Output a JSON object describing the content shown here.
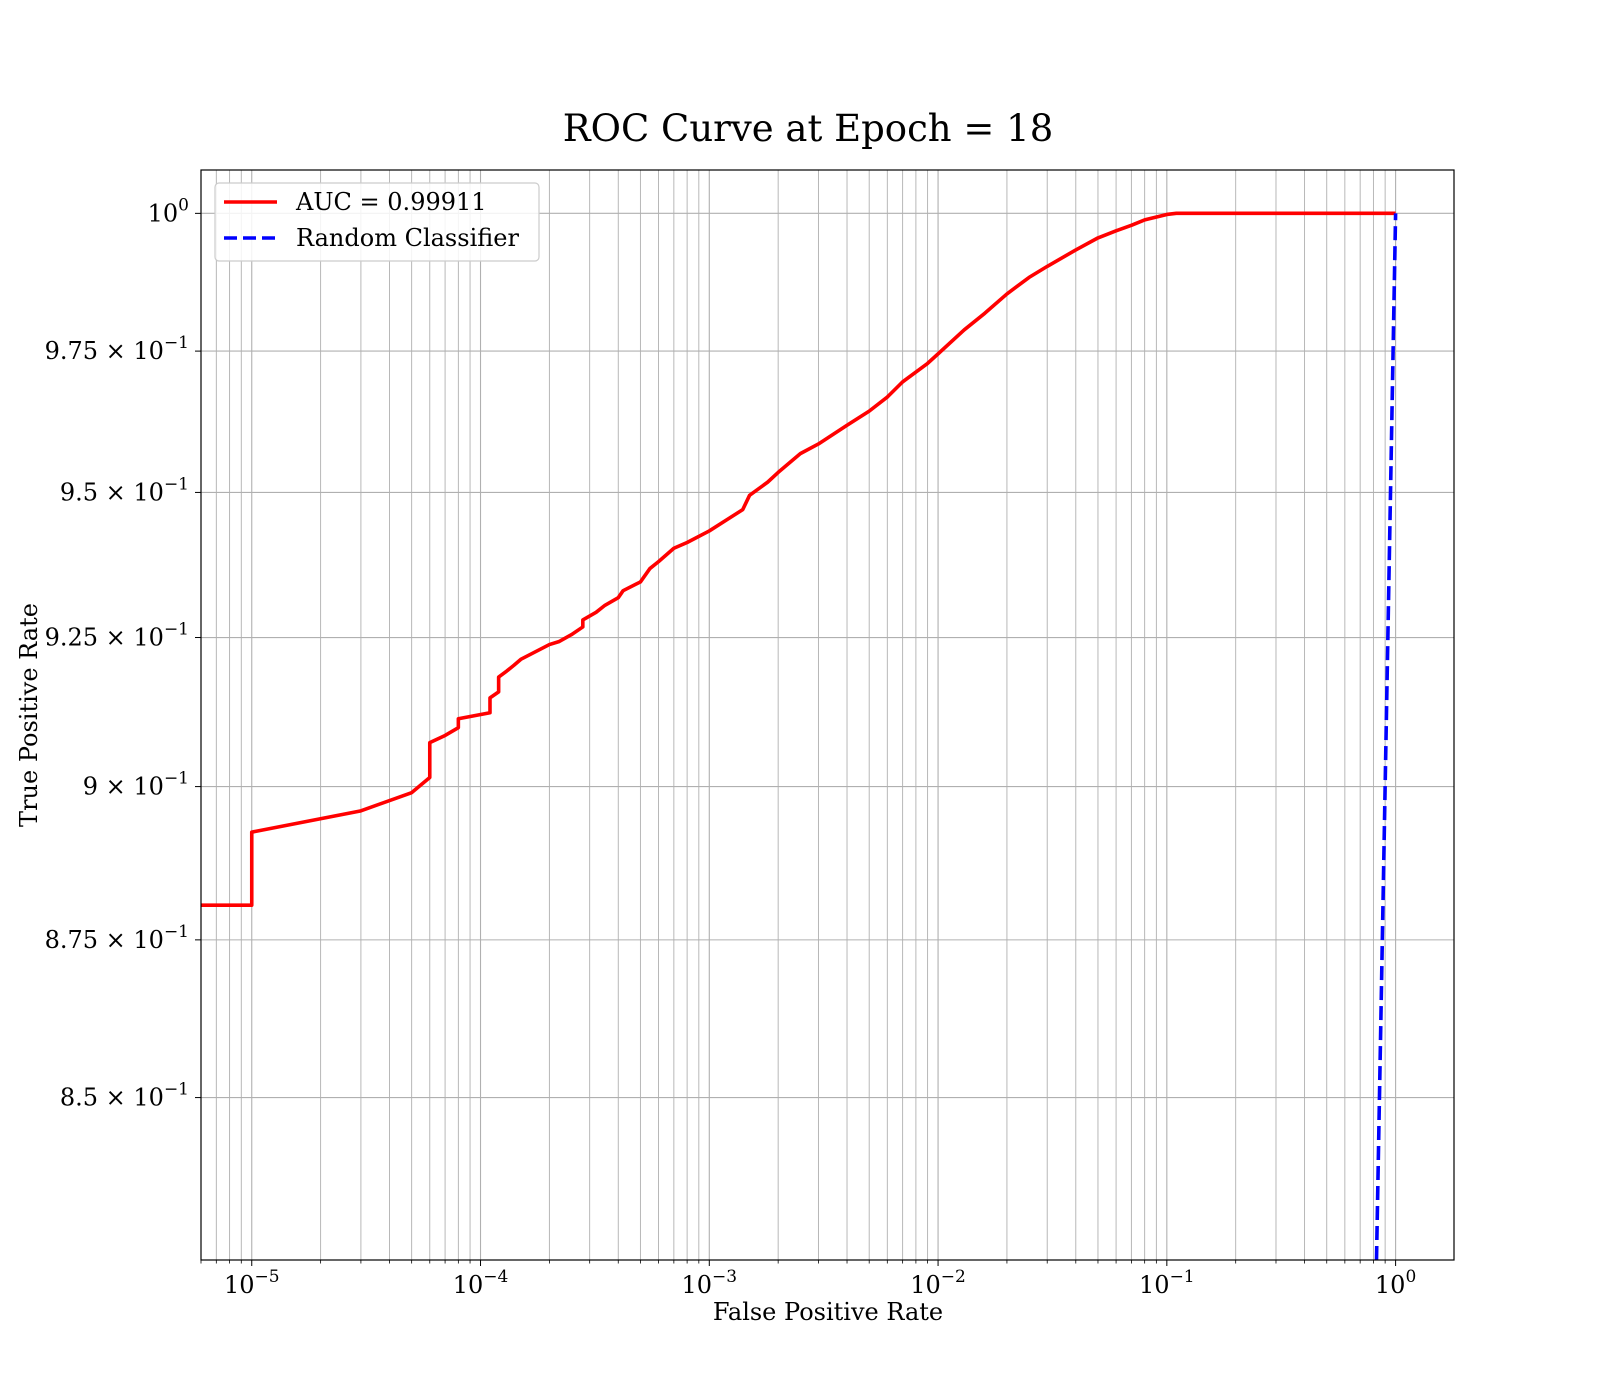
{
  "chart_data": {
    "type": "line",
    "title": "ROC Curve at Epoch = 18",
    "xlabel": "False Positive Rate",
    "ylabel": "True Positive Rate",
    "xscale": "log",
    "yscale": "log",
    "xlim": [
      6e-06,
      1.8
    ],
    "ylim": [
      0.825,
      1.008
    ],
    "grid": true,
    "grid_minor": true,
    "legend_position": "top-left",
    "x_ticks": [
      {
        "value": 1e-05,
        "base": "10",
        "exp": "−5"
      },
      {
        "value": 0.0001,
        "base": "10",
        "exp": "−4"
      },
      {
        "value": 0.001,
        "base": "10",
        "exp": "−3"
      },
      {
        "value": 0.01,
        "base": "10",
        "exp": "−2"
      },
      {
        "value": 0.1,
        "base": "10",
        "exp": "−1"
      },
      {
        "value": 1,
        "base": "10",
        "exp": "0"
      }
    ],
    "y_ticks": [
      {
        "value": 0.85,
        "mant": "8.5 × ",
        "base": "10",
        "exp": "−1"
      },
      {
        "value": 0.875,
        "mant": "8.75 × ",
        "base": "10",
        "exp": "−1"
      },
      {
        "value": 0.9,
        "mant": "9 × ",
        "base": "10",
        "exp": "−1"
      },
      {
        "value": 0.925,
        "mant": "9.25 × ",
        "base": "10",
        "exp": "−1"
      },
      {
        "value": 0.95,
        "mant": "9.5 × ",
        "base": "10",
        "exp": "−1"
      },
      {
        "value": 0.975,
        "mant": "9.75 × ",
        "base": "10",
        "exp": "−1"
      },
      {
        "value": 1.0,
        "mant": "",
        "base": "10",
        "exp": "0"
      }
    ],
    "series": [
      {
        "name": "AUC = 0.99911",
        "color": "#ff0000",
        "style": "solid",
        "x": [
          6e-06,
          1e-05,
          1e-05,
          3e-05,
          5e-05,
          6e-05,
          6e-05,
          7e-05,
          8e-05,
          8e-05,
          0.00011,
          0.00011,
          0.00012,
          0.00012,
          0.00013,
          0.00014,
          0.00015,
          0.0002,
          0.00022,
          0.00025,
          0.00028,
          0.00028,
          0.00032,
          0.00035,
          0.0004,
          0.00042,
          0.0005,
          0.00055,
          0.0006,
          0.0007,
          0.0008,
          0.001,
          0.0012,
          0.0014,
          0.0015,
          0.0018,
          0.002,
          0.0025,
          0.003,
          0.004,
          0.005,
          0.006,
          0.007,
          0.009,
          0.01,
          0.013,
          0.016,
          0.02,
          0.025,
          0.03,
          0.04,
          0.05,
          0.06,
          0.07,
          0.08,
          0.1,
          0.11,
          1.0
        ],
        "y": [
          0.8806,
          0.8806,
          0.8925,
          0.896,
          0.899,
          0.9015,
          0.9073,
          0.9085,
          0.9098,
          0.9113,
          0.9123,
          0.9148,
          0.9158,
          0.9183,
          0.9193,
          0.9203,
          0.9213,
          0.9238,
          0.9243,
          0.9255,
          0.9268,
          0.928,
          0.9293,
          0.9305,
          0.9318,
          0.933,
          0.9345,
          0.9368,
          0.938,
          0.9403,
          0.9413,
          0.9433,
          0.9453,
          0.947,
          0.9495,
          0.9518,
          0.9535,
          0.9568,
          0.9585,
          0.9618,
          0.9643,
          0.9668,
          0.9695,
          0.9728,
          0.9745,
          0.9788,
          0.9818,
          0.9853,
          0.9883,
          0.9903,
          0.9933,
          0.9955,
          0.9968,
          0.9978,
          0.9988,
          0.9998,
          1.0,
          1.0
        ]
      },
      {
        "name": "Random Classifier",
        "color": "#0000ff",
        "style": "dashed",
        "x": [
          0.825,
          0.85,
          0.875,
          0.9,
          0.925,
          0.95,
          0.975,
          1.0
        ],
        "y": [
          0.825,
          0.85,
          0.875,
          0.9,
          0.925,
          0.95,
          0.975,
          1.0
        ]
      }
    ]
  }
}
